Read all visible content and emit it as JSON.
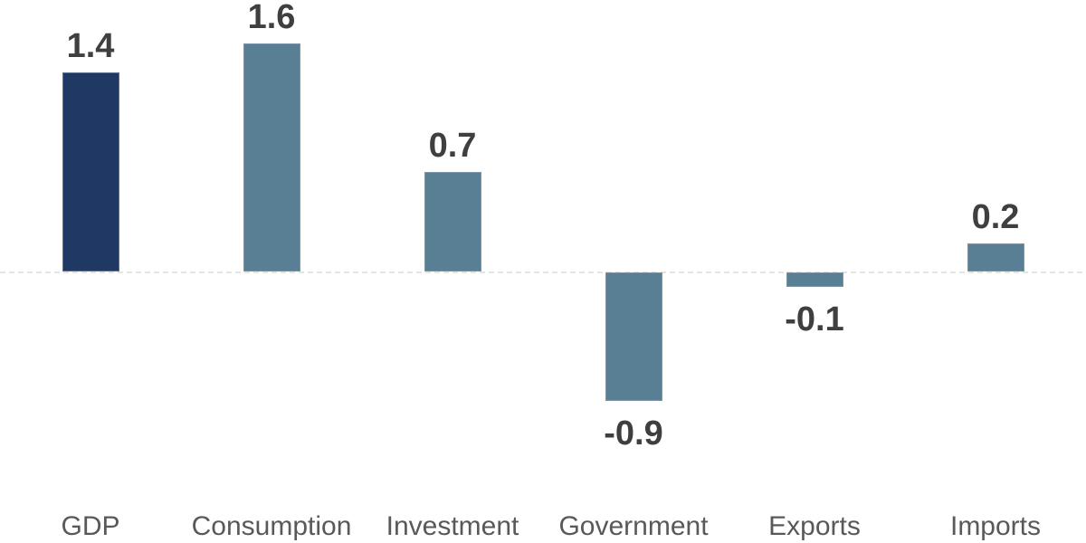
{
  "chart_data": {
    "type": "bar",
    "categories": [
      "GDP",
      "Consumption",
      "Investment",
      "Government",
      "Exports",
      "Imports"
    ],
    "values": [
      1.4,
      1.6,
      0.7,
      -0.9,
      -0.1,
      0.2
    ],
    "value_labels": [
      "1.4",
      "1.6",
      "0.7",
      "-0.9",
      "-0.1",
      "0.2"
    ],
    "title": "",
    "xlabel": "",
    "ylabel": "",
    "ylim": [
      -1.9,
      1.9
    ],
    "baseline": 0,
    "grid": false,
    "legend": false,
    "bar_colors": [
      "#1f3864",
      "#587f94",
      "#587f94",
      "#587f94",
      "#587f94",
      "#587f94"
    ],
    "colors": {
      "highlight_bar": "#1f3864",
      "default_bar": "#587f94",
      "value_label": "#3f3f3f",
      "category_label": "#595959",
      "zero_line": "#e4e4e4",
      "background": "#ffffff"
    }
  }
}
